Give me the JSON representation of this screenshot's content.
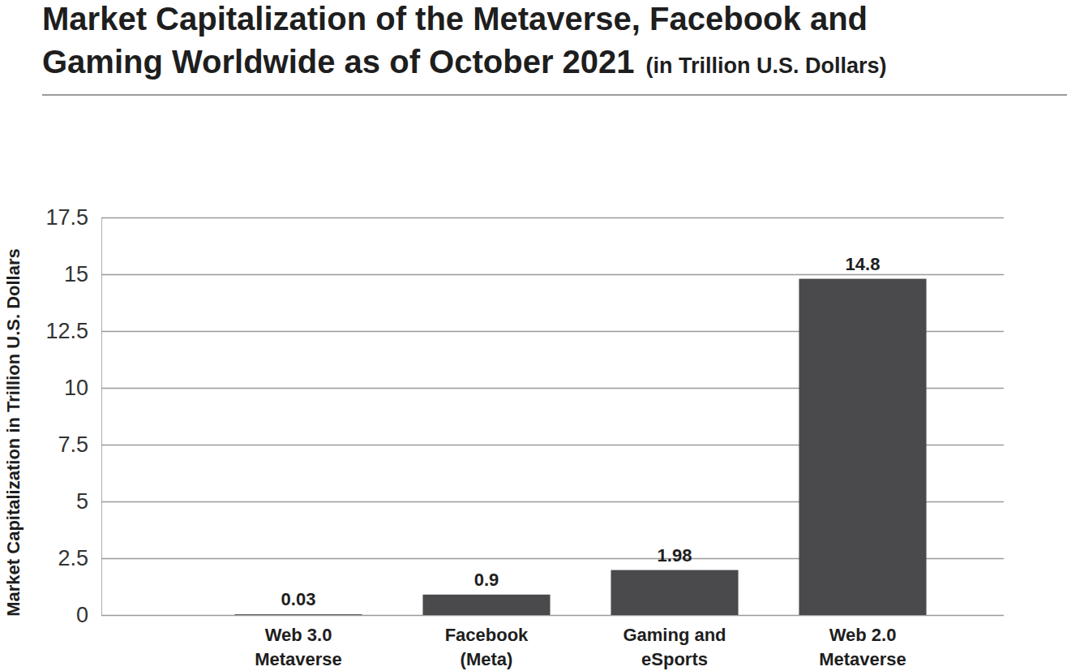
{
  "chart_data": {
    "type": "bar",
    "title": "Market Capitalization of the Metaverse, Facebook and Gaming Worldwide as of October 2021",
    "subtitle": "(in Trillion U.S. Dollars)",
    "y_label": "Market Capitalization in Trillion U.S. Dollars",
    "categories": [
      "Web 3.0 Metaverse",
      "Facebook (Meta)",
      "Gaming and eSports",
      "Web 2.0 Metaverse"
    ],
    "values": [
      0.03,
      0.9,
      1.98,
      14.8
    ],
    "color": "#4a4a4c",
    "ylim": [
      0,
      17.5
    ],
    "yticks": [
      0,
      2.5,
      5,
      7.5,
      10,
      12.5,
      15,
      17.5
    ],
    "grid": true,
    "data_labels": true
  }
}
